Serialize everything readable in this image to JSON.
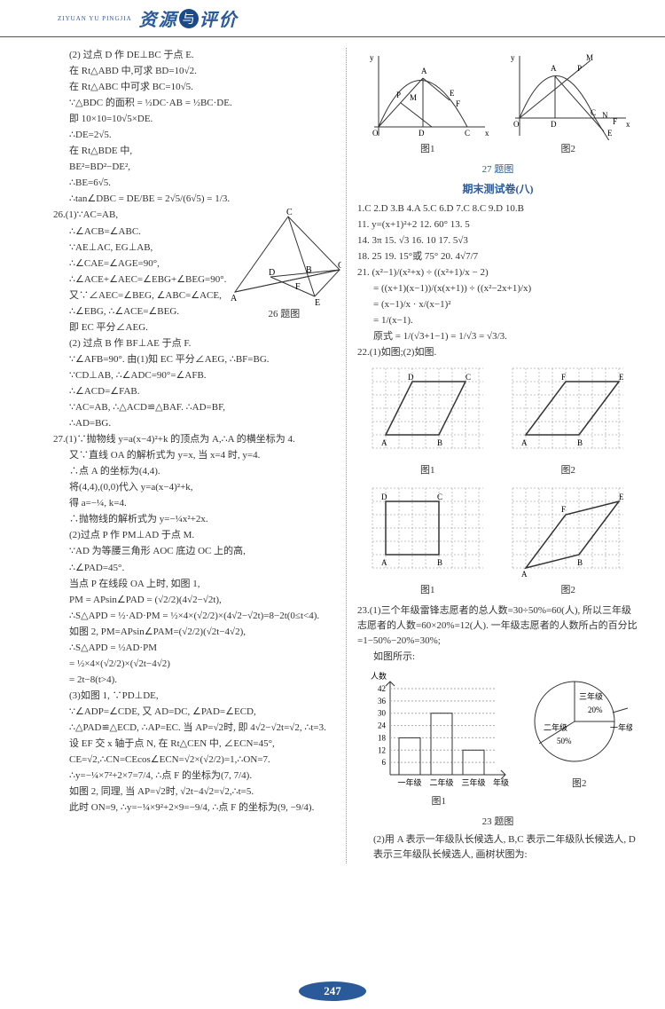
{
  "header": {
    "subtitle": "ZIYUAN YU PINGJIA",
    "title_left": "资源",
    "title_amp": "与",
    "title_right": "评价"
  },
  "page_number": "247",
  "left_column": {
    "p25_2": "(2) 过点 D 作 DE⊥BC 于点 E.",
    "p25_2a": "在 Rt△ABD 中,可求 BD=10√2.",
    "p25_2b": "在 Rt△ABC 中可求 BC=10√5.",
    "p25_2c": "∵△BDC 的面积 = ½DC·AB = ½BC·DE.",
    "p25_2d": "即 10×10=10√5×DE.",
    "p25_2e": "∴DE=2√5.",
    "p25_2f": "在 Rt△BDE 中,",
    "p25_2g": "BE²=BD²−DE²,",
    "p25_2h": "∴BE=6√5.",
    "p25_2i": "∴tan∠DBC = DE/BE = 2√5/(6√5) = 1/3.",
    "p26_1": "26.(1)∵AC=AB,",
    "p26_1a": "∴∠ACB=∠ABC.",
    "p26_1b": "∵AE⊥AC, EG⊥AB,",
    "p26_1c": "∴∠CAE=∠AGE=90°,",
    "p26_1d": "∴∠ACE+∠AEC=∠EBG+∠BEG=90°.",
    "p26_1e": "又∵∠AEC=∠BEG, ∠ABC=∠ACE,",
    "p26_1f": "∴∠EBG, ∴∠ACE=∠BEG.",
    "p26_1g": "即 EC 平分∠AEG.",
    "p26_2": "(2) 过点 B 作 BF⊥AE 于点 F.",
    "p26_2a": "∵∠AFB=90°. 由(1)知 EC 平分∠AEG, ∴BF=BG.",
    "p26_2b": "∵CD⊥AB, ∴∠ADC=90°=∠AFB.",
    "p26_2c": "∴∠ACD=∠FAB.",
    "p26_2d": "∵AC=AB, ∴△ACD≌△BAF. ∴AD=BF,",
    "p26_2e": "∴AD=BG.",
    "fig26_caption": "26 题图",
    "p27_1": "27.(1)∵抛物线 y=a(x−4)²+k 的顶点为 A,∴A 的横坐标为 4.",
    "p27_1a": "又∵直线 OA 的解析式为 y=x, 当 x=4 时, y=4.",
    "p27_1b": "∴点 A 的坐标为(4,4).",
    "p27_1c": "将(4,4),(0,0)代入 y=a(x−4)²+k,",
    "p27_1d": "得 a=−¼, k=4.",
    "p27_1e": "∴抛物线的解析式为 y=−¼x²+2x.",
    "p27_2": "(2)过点 P 作 PM⊥AD 于点 M.",
    "p27_2a": "∵AD 为等腰三角形 AOC 底边 OC 上的高,",
    "p27_2b": "∴∠PAD=45°.",
    "p27_2c": "当点 P 在线段 OA 上时, 如图 1,",
    "p27_2d": "PM = APsin∠PAD = (√2/2)(4√2−√2t),",
    "p27_2e": "∴S△APD = ½·AD·PM = ½×4×(√2/2)×(4√2−√2t)=8−2t(0≤t<4).",
    "p27_2f": "如图 2, PM=APsin∠PAM=(√2/2)(√2t−4√2),",
    "p27_2g": "∴S△APD = ½AD·PM",
    "p27_2h": "= ½×4×(√2/2)×(√2t−4√2)",
    "p27_2i": "= 2t−8(t>4).",
    "p27_3": "(3)如图 1, ∵PD⊥DE,",
    "p27_3a": "∵∠ADP=∠CDE, 又 AD=DC, ∠PAD=∠ECD,",
    "p27_3b": "∴△PAD≌△ECD, ∴AP=EC. 当 AP=√2时, 即 4√2−√2t=√2, ∴t=3.",
    "p27_3c": "设 EF 交 x 轴于点 N, 在 Rt△CEN 中, ∠ECN=45°,",
    "p27_3d": "CE=√2,∴CN=CEcos∠ECN=√2×(√2/2)=1,∴ON=7.",
    "p27_3e": "∴y=−¼×7²+2×7=7/4, ∴点 F 的坐标为(7, 7/4).",
    "p27_3f": "如图 2, 同理, 当 AP=√2时, √2t−4√2=√2,∴t=5.",
    "p27_3g": "此时 ON=9, ∴y=−¼×9²+2×9=−9/4, ∴点 F 的坐标为(9, −9/4)."
  },
  "right_column": {
    "fig27_1": "图1",
    "fig27_2": "图2",
    "fig27_caption": "27 题图",
    "test_title": "期末测试卷(八)",
    "answers1": "1.C  2.D  3.B  4.A  5.C  6.D  7.C  8.C  9.D  10.B",
    "answers2": "11. y=(x+1)²+2  12. 60°  13. 5",
    "answers3": "14. 3π  15. √3  16. 10  17. 5√3",
    "answers4": "18. 25  19. 15°或 75°  20. 4√7/7",
    "p21": "21. (x²−1)/(x²+x) ÷ ((x²+1)/x − 2)",
    "p21a": "= ((x+1)(x−1))/(x(x+1)) ÷ ((x²−2x+1)/x)",
    "p21b": "= (x−1)/x · x/(x−1)²",
    "p21c": "= 1/(x−1).",
    "p21d": "原式 = 1/(√3+1−1) = 1/√3 = √3/3.",
    "p22": "22.(1)如图;(2)如图.",
    "fig22_1": "图1",
    "fig22_2": "图2",
    "p23_1": "23.(1)三个年级雷锋志愿者的总人数=30÷50%=60(人), 所以三年级志愿者的人数=60×20%=12(人). 一年级志愿者的人数所占的百分比=1−50%−20%=30%;",
    "p23_1a": "如图所示:",
    "bar_y_label": "人数",
    "bar_y_ticks": [
      "6",
      "12",
      "18",
      "24",
      "30",
      "36",
      "42"
    ],
    "bar_x_ticks": [
      "一年级",
      "二年级",
      "三年级",
      "年级"
    ],
    "bar_values": [
      18,
      30,
      12
    ],
    "pie_labels": [
      "三年级",
      "20%",
      "一年级",
      "二年级",
      "50%"
    ],
    "fig23_1": "图1",
    "fig23_2": "图2",
    "fig23_caption": "23 题图",
    "p23_2": "(2)用 A 表示一年级队长候选人, B,C 表示二年级队长候选人, D 表示三年级队长候选人, 画树状图为:"
  },
  "colors": {
    "header_blue": "#2a5a9a",
    "text": "#333333",
    "grid": "#888888"
  }
}
